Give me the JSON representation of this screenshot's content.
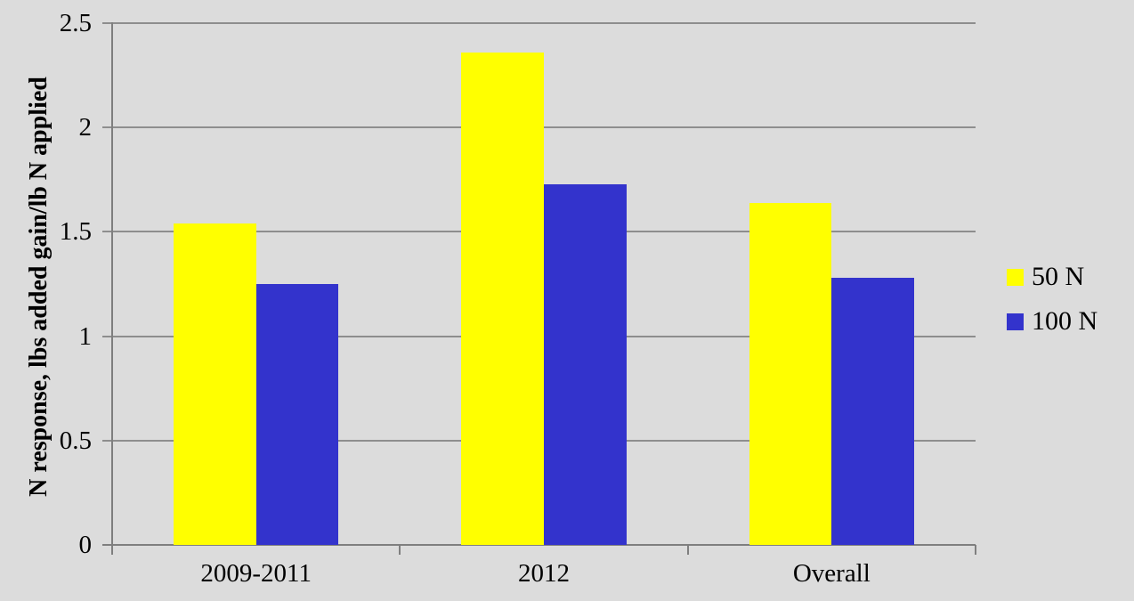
{
  "chart_data": {
    "type": "bar",
    "categories": [
      "2009-2011",
      "2012",
      "Overall"
    ],
    "series": [
      {
        "name": "50 N",
        "color": "#ffff00",
        "values": [
          1.54,
          2.36,
          1.64
        ]
      },
      {
        "name": "100 N",
        "color": "#3333cc",
        "values": [
          1.25,
          1.73,
          1.28
        ]
      }
    ],
    "title": "",
    "xlabel": "",
    "ylabel": "N response, lbs added gain/lb N applied",
    "ylim": [
      0,
      2.5
    ],
    "ytick_step": 0.5,
    "yticks": [
      "0",
      "0.5",
      "1",
      "1.5",
      "2",
      "2.5"
    ],
    "grid": true,
    "legend_position": "right"
  },
  "colors": {
    "background": "#dcdcdc",
    "gridline": "#8e8e8e",
    "axis": "#7f7f7f",
    "text": "#000000",
    "series_50N": "#ffff00",
    "series_100N": "#3333cc"
  }
}
